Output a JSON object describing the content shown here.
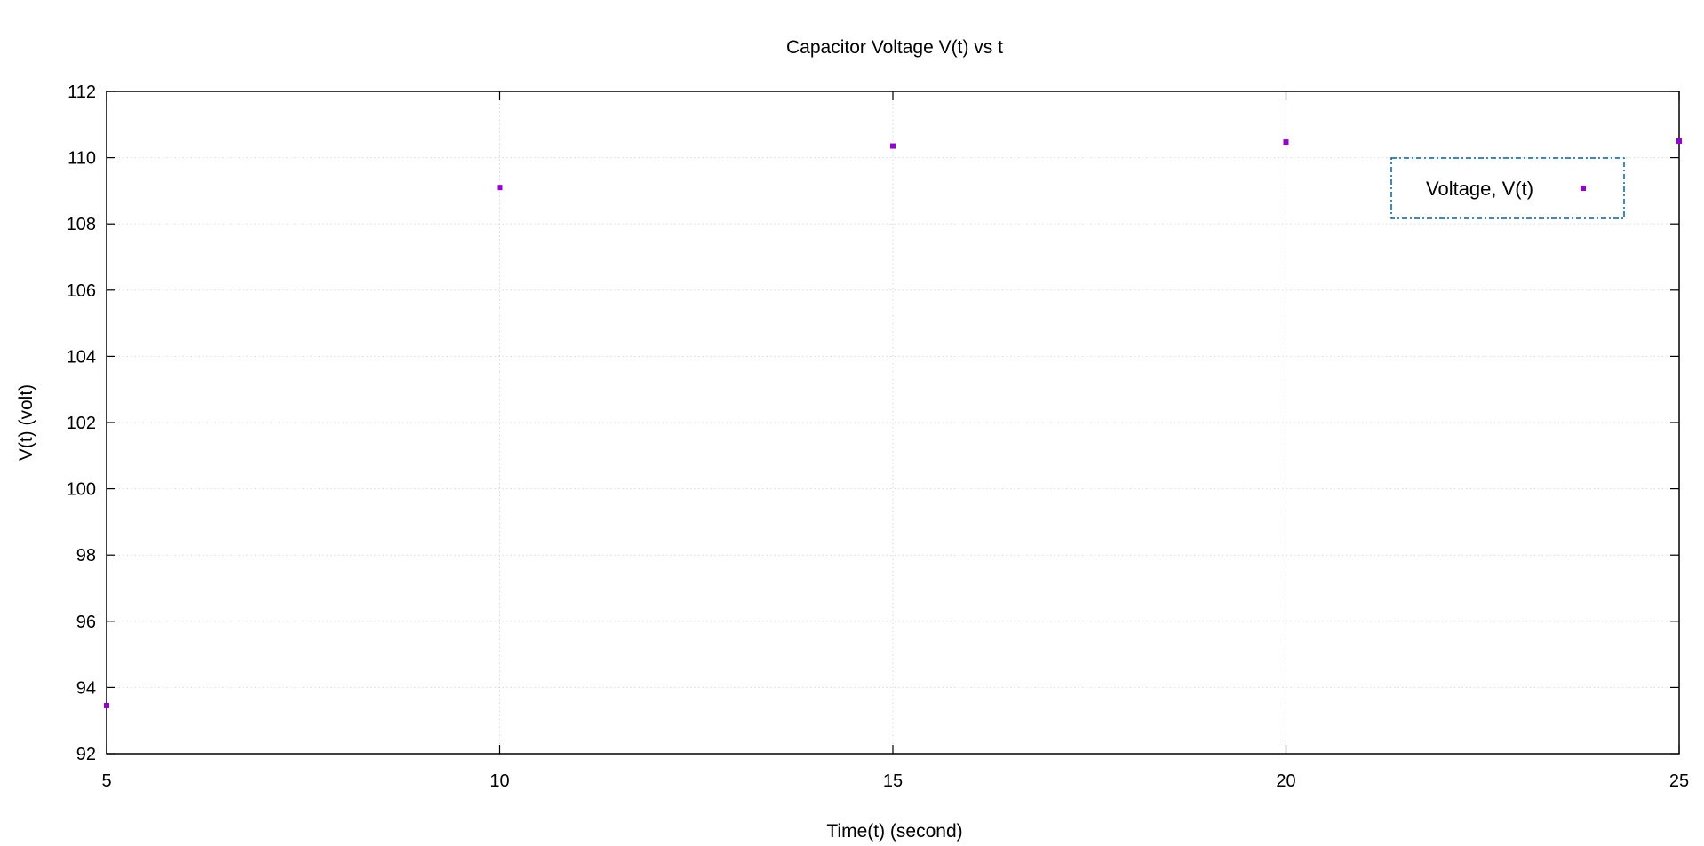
{
  "chart_data": {
    "type": "scatter",
    "title": "Capacitor Voltage V(t) vs t",
    "xlabel": "Time(t) (second)",
    "ylabel": "V(t) (volt)",
    "xlim": [
      5,
      25
    ],
    "ylim": [
      92,
      112
    ],
    "xticks": [
      5,
      10,
      15,
      20,
      25
    ],
    "yticks": [
      92,
      94,
      96,
      98,
      100,
      102,
      104,
      106,
      108,
      110,
      112
    ],
    "grid": true,
    "legend_position": "top-right",
    "series": [
      {
        "name": "Voltage, V(t)",
        "color": "#9400d3",
        "marker": "square",
        "x": [
          5,
          10,
          15,
          20,
          25
        ],
        "y": [
          93.45,
          109.1,
          110.35,
          110.47,
          110.5
        ]
      }
    ]
  }
}
